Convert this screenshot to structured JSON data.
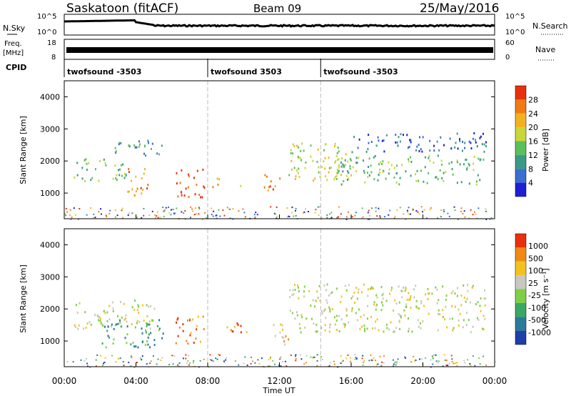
{
  "header": {
    "station": "Saskatoon (fitACF)",
    "beam": "Beam 09",
    "date": "25/May/2016"
  },
  "noise_panel": {
    "left_label": "N.Sky",
    "right_label": "N.Search",
    "left_ticks": [
      "10^5",
      "10^0"
    ],
    "right_ticks": [
      "10^5",
      "10^0"
    ]
  },
  "freq_panel": {
    "left_label_1": "Freq.",
    "left_label_2": "[MHz]",
    "right_label": "Nave",
    "left_ticks": [
      "18",
      "8"
    ],
    "right_ticks": [
      "60",
      "0"
    ]
  },
  "cpid_panel": {
    "label": "CPID",
    "segments": [
      {
        "start_hour": 0,
        "label": "twofsound -3503"
      },
      {
        "start_hour": 8,
        "label": "twofsound 3503"
      },
      {
        "start_hour": 14.3,
        "label": "twofsound -3503"
      }
    ]
  },
  "chart_data": [
    {
      "type": "heatmap",
      "name": "power",
      "ylabel": "Slant Range [km]",
      "ylim": [
        200,
        4500
      ],
      "yticks": [
        1000,
        2000,
        3000,
        4000
      ],
      "xlim": [
        0,
        24
      ],
      "colorbar": {
        "label": "Power [dB]",
        "ticks": [
          "4",
          "8",
          "12",
          "16",
          "20",
          "24",
          "28"
        ],
        "colors": [
          "#1f1fd6",
          "#3a6ecf",
          "#3a9a86",
          "#5bbf5b",
          "#c9d63a",
          "#f2b21f",
          "#f07a14",
          "#e8300f"
        ]
      },
      "regions": [
        {
          "t0": 0.5,
          "t1": 3.5,
          "r0": 1400,
          "r1": 2100,
          "level": 3
        },
        {
          "t0": 2.5,
          "t1": 5.5,
          "r0": 2200,
          "r1": 2700,
          "level": 2
        },
        {
          "t0": 3.5,
          "t1": 4.8,
          "r0": 900,
          "r1": 1800,
          "level": 6
        },
        {
          "t0": 6.2,
          "t1": 7.8,
          "r0": 900,
          "r1": 1800,
          "level": 7
        },
        {
          "t0": 8.2,
          "t1": 9.0,
          "r0": 1200,
          "r1": 1500,
          "level": 6
        },
        {
          "t0": 9.6,
          "t1": 10.0,
          "r0": 1200,
          "r1": 1400,
          "level": 5
        },
        {
          "t0": 11.0,
          "t1": 12.0,
          "r0": 1000,
          "r1": 1600,
          "level": 6
        },
        {
          "t0": 12.5,
          "t1": 16.0,
          "r0": 1400,
          "r1": 2600,
          "level": 4
        },
        {
          "t0": 15.0,
          "t1": 23.5,
          "r0": 1300,
          "r1": 2200,
          "level": 3
        },
        {
          "t0": 16.0,
          "t1": 23.5,
          "r0": 2300,
          "r1": 2900,
          "level": 1
        }
      ]
    },
    {
      "type": "heatmap",
      "name": "velocity",
      "ylabel": "Slant Range [km]",
      "xlabel": "Time UT",
      "ylim": [
        200,
        4500
      ],
      "yticks": [
        1000,
        2000,
        3000,
        4000
      ],
      "xlim": [
        0,
        24
      ],
      "xticks": [
        "00:00",
        "04:00",
        "08:00",
        "12:00",
        "16:00",
        "20:00",
        "00:00"
      ],
      "colorbar": {
        "label": "Velocity [m s⁻¹]",
        "ticks": [
          "1000",
          "500",
          "100",
          "25",
          "-25",
          "-100",
          "-500",
          "-1000"
        ],
        "colors": [
          "#1f3fa8",
          "#2a7a9a",
          "#3aa860",
          "#7ecf45",
          "#c8c8c0",
          "#f2c31f",
          "#f08a14",
          "#e8300f"
        ]
      },
      "regions": [
        {
          "t0": 0.5,
          "t1": 5.0,
          "r0": 1400,
          "r1": 2300,
          "level": 4
        },
        {
          "t0": 2.0,
          "t1": 5.5,
          "r0": 800,
          "r1": 1700,
          "level": 2
        },
        {
          "t0": 6.2,
          "t1": 7.8,
          "r0": 900,
          "r1": 1800,
          "level": 6
        },
        {
          "t0": 9.0,
          "t1": 10.2,
          "r0": 1100,
          "r1": 1600,
          "level": 6
        },
        {
          "t0": 11.5,
          "t1": 12.5,
          "r0": 900,
          "r1": 1600,
          "level": 5
        },
        {
          "t0": 12.5,
          "t1": 23.5,
          "r0": 1300,
          "r1": 2800,
          "level": 4
        }
      ]
    }
  ]
}
